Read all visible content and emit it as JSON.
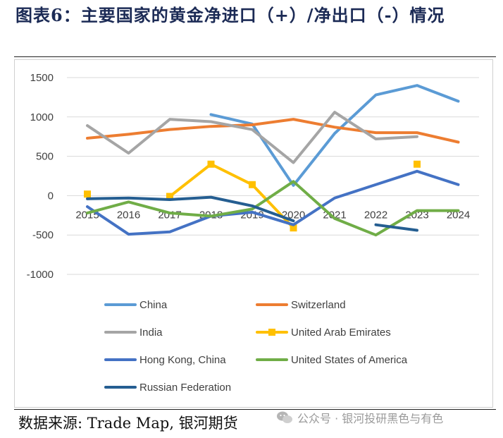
{
  "title": "图表6：主要国家的黄金净进口（+）/净出口（-）情况",
  "source": "数据来源: Trade Map, 银河期货",
  "watermark": "公众号 · 银河投研黑色与有色",
  "chart_data": {
    "type": "line",
    "x": [
      "2015",
      "2016",
      "2017",
      "2018",
      "2019",
      "2020",
      "2021",
      "2022",
      "2023",
      "2024"
    ],
    "ylim": [
      -1000,
      1500
    ],
    "yticks": [
      1500,
      1000,
      500,
      0,
      -500,
      -1000
    ],
    "grid": true,
    "legend_position": "bottom",
    "series": [
      {
        "name": "China",
        "color": "#5b9bd5",
        "marker": "none",
        "values": [
          null,
          null,
          null,
          1030,
          910,
          130,
          790,
          1280,
          1400,
          1200
        ]
      },
      {
        "name": "Switzerland",
        "color": "#ed7d31",
        "marker": "none",
        "values": [
          730,
          780,
          840,
          880,
          900,
          970,
          870,
          800,
          800,
          680
        ]
      },
      {
        "name": "India",
        "color": "#a5a5a5",
        "marker": "none",
        "values": [
          890,
          540,
          970,
          940,
          840,
          420,
          1060,
          720,
          750,
          null
        ]
      },
      {
        "name": "United Arab Emirates",
        "color": "#ffc000",
        "marker": "square",
        "values": [
          20,
          null,
          -10,
          400,
          140,
          -410,
          null,
          null,
          400,
          null
        ]
      },
      {
        "name": "Hong Kong, China",
        "color": "#4472c4",
        "marker": "none",
        "values": [
          -140,
          -490,
          -460,
          -260,
          -210,
          -370,
          -30,
          140,
          310,
          140
        ]
      },
      {
        "name": "United States of America",
        "color": "#70ad47",
        "marker": "none",
        "values": [
          -220,
          -80,
          -220,
          -260,
          -170,
          180,
          -290,
          -500,
          -190,
          -190
        ]
      },
      {
        "name": "Russian Federation",
        "color": "#255e91",
        "marker": "none",
        "values": [
          -40,
          -30,
          -50,
          -20,
          -130,
          -320,
          null,
          -370,
          -440,
          null
        ]
      }
    ]
  }
}
